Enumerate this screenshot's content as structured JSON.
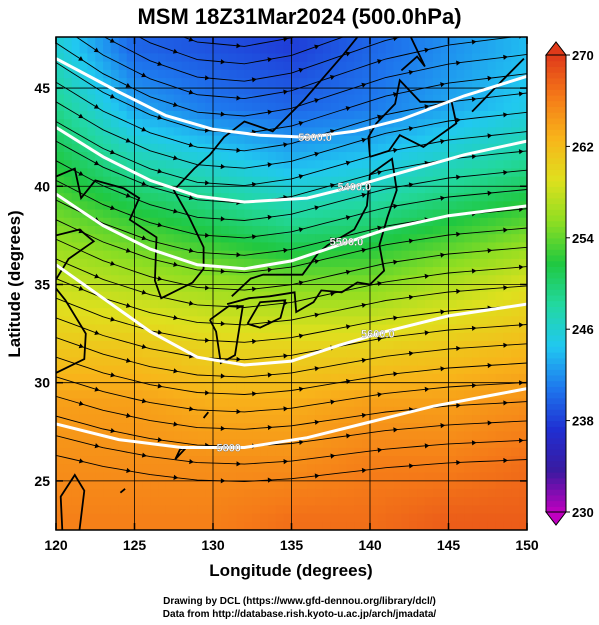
{
  "title": "MSM 18Z31Mar2024 (500.0hPa)",
  "footer": {
    "line1": "Drawing by DCL (https://www.gfd-dennou.org/library/dcl/)",
    "line2": "Data from http://database.rish.kyoto-u.ac.jp/arch/jmadata/"
  },
  "chart_data": {
    "type": "heatmap",
    "xlabel": "Longitude (degrees)",
    "ylabel": "Latitude  (degrees)",
    "xlim": [
      120,
      150
    ],
    "ylim": [
      22.5,
      47.6
    ],
    "xticks": [
      120,
      125,
      130,
      135,
      140,
      145,
      150
    ],
    "yticks": [
      25,
      30,
      35,
      40,
      45
    ],
    "grid": true,
    "colorbar": {
      "min": 230,
      "max": 270,
      "ticks": [
        230,
        238,
        246,
        254,
        262,
        270
      ],
      "colors": [
        "#c000c0",
        "#3a1aa0",
        "#1f2fd2",
        "#1e78ee",
        "#21c8f0",
        "#22d8a0",
        "#20c840",
        "#8ede22",
        "#dfe01e",
        "#f8b41a",
        "#f57a18",
        "#e03a1a"
      ]
    },
    "field": {
      "description_values": "temperature in K, approximate",
      "rows_lat": [
        47,
        44,
        41,
        38,
        35,
        32,
        29,
        26,
        23
      ],
      "cols_lon": [
        120,
        125,
        130,
        135,
        140,
        145,
        150
      ],
      "values": [
        [
          246,
          240,
          239,
          238,
          240,
          242,
          244
        ],
        [
          249,
          243,
          241,
          240,
          241,
          243,
          245
        ],
        [
          252,
          248,
          246,
          244,
          245,
          247,
          249
        ],
        [
          255,
          253,
          251,
          249,
          250,
          252,
          254
        ],
        [
          258,
          257,
          256,
          255,
          255,
          257,
          259
        ],
        [
          261,
          261,
          260,
          260,
          260,
          261,
          262
        ],
        [
          264,
          264,
          263,
          263,
          264,
          264,
          265
        ],
        [
          265,
          265,
          265,
          265,
          266,
          266,
          267
        ],
        [
          266,
          266,
          266,
          267,
          267,
          268,
          268
        ]
      ]
    },
    "contours": [
      {
        "label": "5300.0",
        "label_lon": 136.5,
        "label_lat": 42.5,
        "points": [
          [
            120,
            46.5
          ],
          [
            124,
            44.8
          ],
          [
            127,
            43.6
          ],
          [
            130,
            42.9
          ],
          [
            133,
            42.6
          ],
          [
            136,
            42.5
          ],
          [
            139,
            42.8
          ],
          [
            142,
            43.4
          ],
          [
            146,
            44.6
          ],
          [
            150,
            45.6
          ]
        ]
      },
      {
        "label": "5400.0",
        "label_lon": 139,
        "label_lat": 40.0,
        "points": [
          [
            120,
            43.0
          ],
          [
            123,
            41.5
          ],
          [
            126,
            40.3
          ],
          [
            129,
            39.5
          ],
          [
            132,
            39.2
          ],
          [
            136,
            39.4
          ],
          [
            139,
            40.0
          ],
          [
            142,
            40.7
          ],
          [
            146,
            41.6
          ],
          [
            150,
            42.3
          ]
        ]
      },
      {
        "label": "5500.0",
        "label_lon": 138.5,
        "label_lat": 37.2,
        "points": [
          [
            120,
            39.6
          ],
          [
            123,
            38.0
          ],
          [
            126,
            36.8
          ],
          [
            129,
            36.0
          ],
          [
            132,
            35.8
          ],
          [
            135,
            36.2
          ],
          [
            138,
            37.0
          ],
          [
            141,
            37.8
          ],
          [
            145,
            38.5
          ],
          [
            150,
            39.0
          ]
        ]
      },
      {
        "label": "5600.0",
        "label_lon": 140.5,
        "label_lat": 32.5,
        "points": [
          [
            120,
            36.0
          ],
          [
            123,
            34.3
          ],
          [
            126,
            32.6
          ],
          [
            129,
            31.3
          ],
          [
            132,
            30.9
          ],
          [
            135,
            31.1
          ],
          [
            138,
            31.9
          ],
          [
            141,
            32.6
          ],
          [
            145,
            33.4
          ],
          [
            150,
            34.0
          ]
        ]
      },
      {
        "label": "5800",
        "label_lon": 131,
        "label_lat": 26.7,
        "points": [
          [
            120,
            27.9
          ],
          [
            124,
            27.1
          ],
          [
            128,
            26.7
          ],
          [
            132,
            26.7
          ],
          [
            136,
            27.2
          ],
          [
            140,
            28.0
          ],
          [
            144,
            28.8
          ],
          [
            148,
            29.4
          ],
          [
            150,
            29.7
          ]
        ]
      }
    ]
  }
}
